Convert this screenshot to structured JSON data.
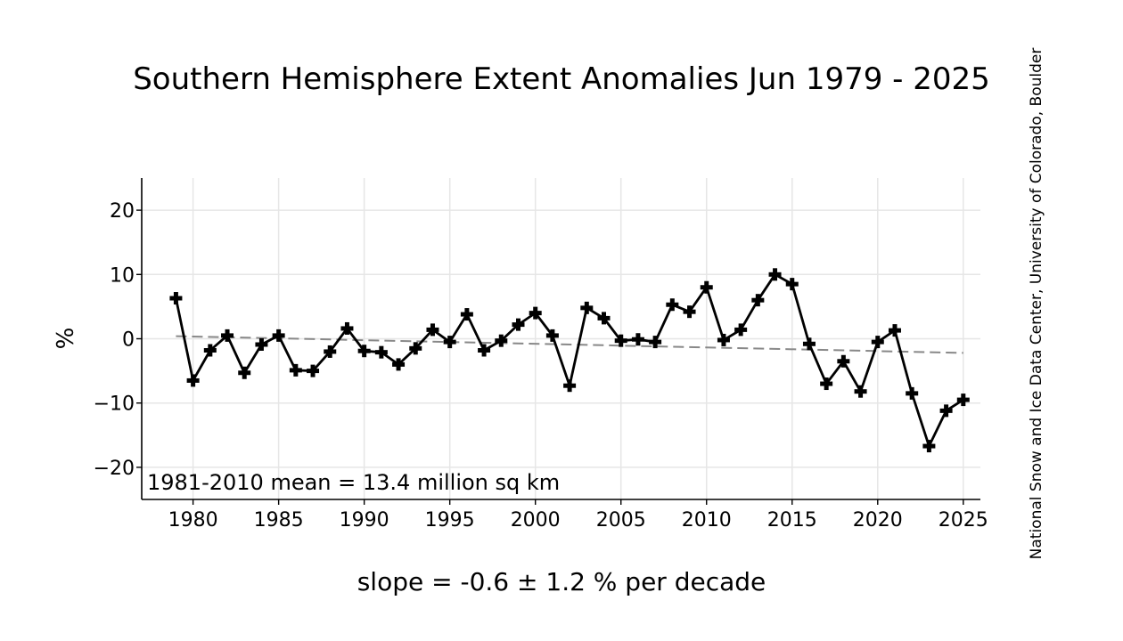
{
  "chart_data": {
    "type": "line",
    "title": "Southern Hemisphere Extent Anomalies Jun 1979 - 2025",
    "subtitle": "slope = -0.6 ± 1.2 % per decade",
    "ylabel": "%",
    "xlabel": "",
    "annotation": "1981-2010 mean = 13.4 million sq km",
    "credit": "National Snow and Ice Data Center, University of Colorado, Boulder",
    "xlim": [
      1977,
      2026
    ],
    "ylim": [
      -25,
      25
    ],
    "xticks": [
      1980,
      1985,
      1990,
      1995,
      2000,
      2005,
      2010,
      2015,
      2020,
      2025
    ],
    "xtick_labels": [
      "1980",
      "1985",
      "1990",
      "1995",
      "2000",
      "2005",
      "2010",
      "2015",
      "2020",
      "2025"
    ],
    "yticks": [
      -20,
      -10,
      0,
      10,
      20
    ],
    "ytick_labels": [
      "−20",
      "−10",
      "0",
      "10",
      "20"
    ],
    "grid": true,
    "series": [
      {
        "type": "line",
        "color": "#000000",
        "marker": "plus",
        "x": [
          1979,
          1980,
          1981,
          1982,
          1983,
          1984,
          1985,
          1986,
          1987,
          1988,
          1989,
          1990,
          1991,
          1992,
          1993,
          1994,
          1995,
          1996,
          1997,
          1998,
          1999,
          2000,
          2001,
          2002,
          2003,
          2004,
          2005,
          2006,
          2007,
          2008,
          2009,
          2010,
          2011,
          2012,
          2013,
          2014,
          2015,
          2016,
          2017,
          2018,
          2019,
          2020,
          2021,
          2022,
          2023,
          2024,
          2025
        ],
        "values": [
          6.3,
          -6.5,
          -1.8,
          0.5,
          -5.3,
          -0.9,
          0.5,
          -4.9,
          -5.0,
          -2.0,
          1.6,
          -1.9,
          -2.1,
          -4.0,
          -1.5,
          1.4,
          -0.5,
          3.8,
          -1.8,
          -0.3,
          2.2,
          4.0,
          0.5,
          -7.3,
          4.8,
          3.2,
          -0.3,
          -0.1,
          -0.5,
          5.3,
          4.2,
          8.0,
          -0.2,
          1.4,
          6.0,
          10.0,
          8.5,
          -0.8,
          -7.0,
          -3.5,
          -8.2,
          -0.5,
          1.3,
          -8.5,
          -16.7,
          -11.2,
          -9.5
        ]
      },
      {
        "type": "trend",
        "color": "#888888",
        "style": "dashed",
        "x": [
          1979,
          2025
        ],
        "values": [
          0.4,
          -2.2
        ]
      }
    ]
  }
}
